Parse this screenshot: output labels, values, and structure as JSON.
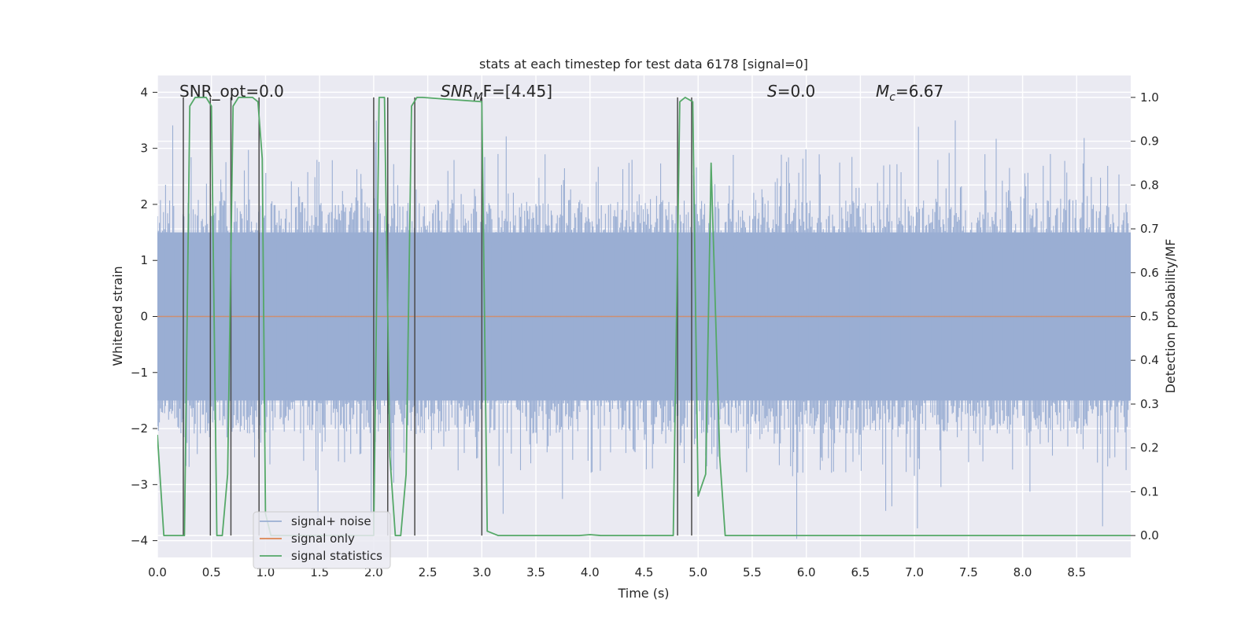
{
  "chart_data": {
    "type": "line",
    "title": "stats at each timestep for test data 6178 [signal=0]",
    "xlabel": "Time (s)",
    "ylabel_left": "Whitened strain",
    "ylabel_right": "Detection probability/MF",
    "xlim": [
      0,
      9
    ],
    "ylim_left": [
      -4.3,
      4.3
    ],
    "ylim_right": [
      -0.05,
      1.05
    ],
    "x_ticks": [
      0.0,
      0.5,
      1.0,
      1.5,
      2.0,
      2.5,
      3.0,
      3.5,
      4.0,
      4.5,
      5.0,
      5.5,
      6.0,
      6.5,
      7.0,
      7.5,
      8.0,
      8.5
    ],
    "x_tick_labels": [
      "0.0",
      "0.5",
      "1.0",
      "1.5",
      "2.0",
      "2.5",
      "3.0",
      "3.5",
      "4.0",
      "4.5",
      "5.0",
      "5.5",
      "6.0",
      "6.5",
      "7.0",
      "7.5",
      "8.0",
      "8.5"
    ],
    "y_left_ticks": [
      -4,
      -3,
      -2,
      -1,
      0,
      1,
      2,
      3,
      4
    ],
    "y_left_tick_labels": [
      "−4",
      "−3",
      "−2",
      "−1",
      "0",
      "1",
      "2",
      "3",
      "4"
    ],
    "y_right_ticks": [
      0.0,
      0.1,
      0.2,
      0.3,
      0.4,
      0.5,
      0.6,
      0.7,
      0.8,
      0.9,
      1.0
    ],
    "y_right_tick_labels": [
      "0.0",
      "0.1",
      "0.2",
      "0.3",
      "0.4",
      "0.5",
      "0.6",
      "0.7",
      "0.8",
      "0.9",
      "1.0"
    ],
    "grid": true,
    "annotations": {
      "snr_opt": "SNR_opt=0.0",
      "snr_mf_main": "SNR",
      "snr_mf_sub": "M",
      "snr_mf_rest": "F=[4.45]",
      "s_label": "S",
      "s_value": "=0.0",
      "mc_main": "M",
      "mc_sub": "c",
      "mc_value": "=6.67"
    },
    "legend": {
      "position": "lower-left",
      "entries": [
        "signal+ noise",
        "signal only",
        "signal statistics"
      ]
    },
    "colors": {
      "noise": "#9aaed3",
      "signal": "#dd8452",
      "statistics": "#55a868",
      "markers": "#4a4a4a",
      "background": "#eaeaf2"
    },
    "series": [
      {
        "name": "signal+ noise",
        "axis": "left",
        "style": "dense noise band",
        "envelope_core": 1.5,
        "envelope_peak_upper": 3.7,
        "envelope_peak_lower": -4.0
      },
      {
        "name": "signal only",
        "axis": "left",
        "x": [
          0,
          9
        ],
        "y": [
          0,
          0
        ]
      },
      {
        "name": "signal statistics",
        "axis": "right",
        "x": [
          0.0,
          0.06,
          0.25,
          0.3,
          0.35,
          0.45,
          0.5,
          0.55,
          0.6,
          0.65,
          0.7,
          0.75,
          0.8,
          0.88,
          0.93,
          0.97,
          1.0,
          1.05,
          1.1,
          1.15,
          2.0,
          2.05,
          2.1,
          2.15,
          2.2,
          2.25,
          2.3,
          2.35,
          2.4,
          2.45,
          3.0,
          3.05,
          3.15,
          3.9,
          4.0,
          4.1,
          4.77,
          4.83,
          4.88,
          4.95,
          5.0,
          5.07,
          5.12,
          5.2,
          5.25,
          9.0
        ],
        "y": [
          0.23,
          0.0,
          0.0,
          0.98,
          1.0,
          1.0,
          0.98,
          0.0,
          0.0,
          0.14,
          0.98,
          1.0,
          1.0,
          1.0,
          0.99,
          0.86,
          0.05,
          0.0,
          0.0,
          0.0,
          0.0,
          1.0,
          1.0,
          0.18,
          0.0,
          0.0,
          0.14,
          0.98,
          1.0,
          1.0,
          0.99,
          0.01,
          0.0,
          0.0,
          0.002,
          0.0,
          0.0,
          0.99,
          1.0,
          0.99,
          0.09,
          0.14,
          0.85,
          0.18,
          0.0,
          0.0
        ]
      }
    ],
    "markers": {
      "axis": "right",
      "y_top": 1.0,
      "y_bottom": 0.0,
      "x": [
        0.24,
        0.49,
        0.68,
        0.94,
        2.0,
        2.13,
        2.38,
        3.0,
        4.81,
        4.94
      ]
    }
  }
}
